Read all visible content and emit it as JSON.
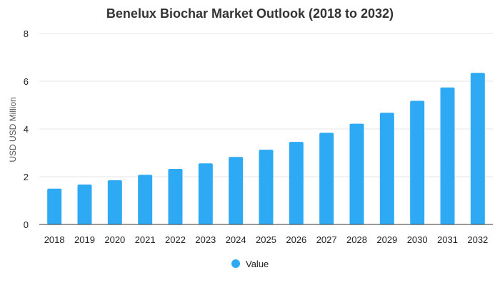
{
  "chart_data": {
    "type": "bar",
    "title": "Benelux Biochar Market Outlook (2018 to 2032)",
    "xlabel": "",
    "ylabel": "USD USD Million",
    "categories": [
      "2018",
      "2019",
      "2020",
      "2021",
      "2022",
      "2023",
      "2024",
      "2025",
      "2026",
      "2027",
      "2028",
      "2029",
      "2030",
      "2031",
      "2032"
    ],
    "series": [
      {
        "name": "Value",
        "color": "#2eaaf5",
        "values": [
          1.5,
          1.67,
          1.85,
          2.08,
          2.33,
          2.56,
          2.83,
          3.13,
          3.46,
          3.84,
          4.22,
          4.68,
          5.18,
          5.74,
          6.35
        ]
      }
    ],
    "ylim": [
      0,
      8
    ],
    "yticks": [
      0,
      2,
      4,
      6,
      8
    ],
    "grid": true,
    "legend_position": "bottom-center"
  }
}
